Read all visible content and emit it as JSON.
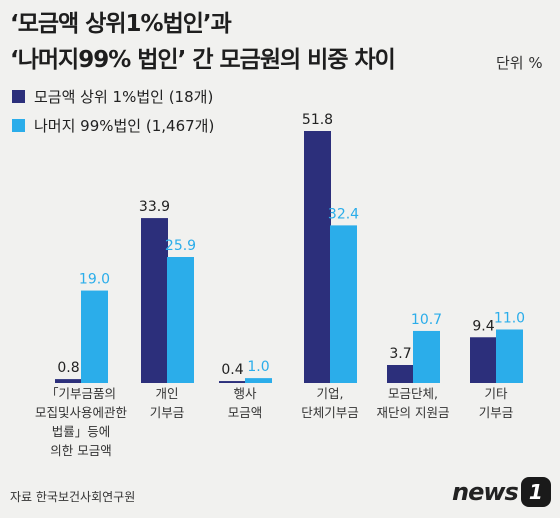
{
  "header": {
    "title_line1": "‘모금액 상위1%법인’과",
    "title_line2": "‘나머지99% 법인’ 간 모금원의 비중 차이",
    "unit": "단위 %"
  },
  "legend": [
    {
      "label": "모금액 상위 1%법인 (18개)",
      "color": "#2c2f7b"
    },
    {
      "label": "나머지 99%법인 (1,467개)",
      "color": "#2badea"
    }
  ],
  "chart_data": {
    "type": "bar",
    "categories": [
      [
        "「기부금품의",
        "모집및사용에관한",
        "법률」등에",
        "의한 모금액"
      ],
      [
        "개인",
        "기부금"
      ],
      [
        "행사",
        "모금액"
      ],
      [
        "기업,",
        "단체기부금"
      ],
      [
        "모금단체,",
        "재단의 지원금"
      ],
      [
        "기타",
        "기부금"
      ]
    ],
    "series": [
      {
        "name": "모금액 상위 1%법인 (18개)",
        "values": [
          0.8,
          33.9,
          0.4,
          51.8,
          3.7,
          9.4
        ],
        "labels": [
          "0.8",
          "33.9",
          "0.4",
          "51.8",
          "3.7",
          "9.4"
        ],
        "color": "#2c2f7b"
      },
      {
        "name": "나머지 99%법인 (1,467개)",
        "values": [
          19.0,
          25.9,
          1.0,
          32.4,
          10.7,
          11.0
        ],
        "labels": [
          "19.0",
          "25.9",
          "1.0",
          "32.4",
          "10.7",
          "11.0"
        ],
        "color": "#2badea"
      }
    ],
    "ylim": [
      0,
      51.8
    ],
    "unit": "%"
  },
  "footer": {
    "source": "자료 한국보건사회연구원",
    "logo_text": "news",
    "logo_badge": "1"
  }
}
